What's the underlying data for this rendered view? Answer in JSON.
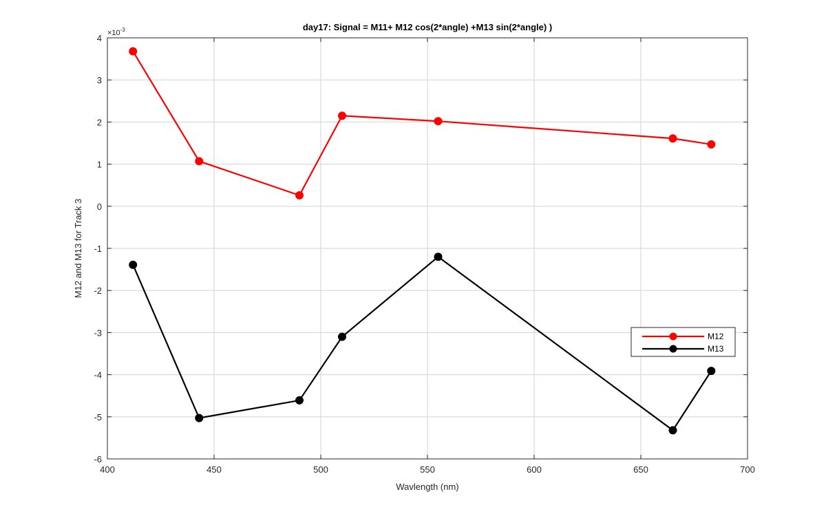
{
  "chart_data": {
    "type": "line",
    "title": "day17: Signal = M11+ M12 cos(2*angle) +M13 sin(2*angle) )",
    "xlabel": "Wavlength (nm)",
    "ylabel": "M12 and M13 for Track 3",
    "y_exponent_base": "×10",
    "y_exponent_power": "-3",
    "xlim": [
      400,
      700
    ],
    "ylim": [
      -6,
      4
    ],
    "xticks": [
      400,
      450,
      500,
      550,
      600,
      650,
      700
    ],
    "yticks": [
      -6,
      -5,
      -4,
      -3,
      -2,
      -1,
      0,
      1,
      2,
      3,
      4
    ],
    "grid": true,
    "legend_position": "lower-right",
    "series": [
      {
        "name": "M12",
        "color": "#ff0000",
        "x": [
          412,
          443,
          490,
          510,
          555,
          665,
          683
        ],
        "y": [
          3.68,
          1.07,
          0.26,
          2.15,
          2.02,
          1.61,
          1.47
        ]
      },
      {
        "name": "M13",
        "color": "#000000",
        "x": [
          412,
          443,
          490,
          510,
          555,
          665,
          683
        ],
        "y": [
          -1.39,
          -5.03,
          -4.61,
          -3.1,
          -1.2,
          -5.32,
          -3.91
        ]
      }
    ]
  }
}
